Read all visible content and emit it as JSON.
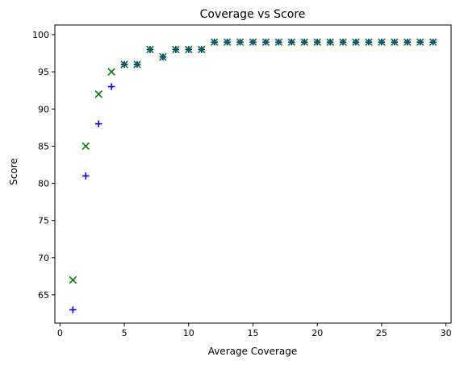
{
  "chart_data": {
    "type": "scatter",
    "title": "Coverage vs Score",
    "xlabel": "Average Coverage",
    "ylabel": "Score",
    "xlim": [
      -0.4,
      30.4
    ],
    "ylim": [
      61.2,
      101.3
    ],
    "xticks": [
      0,
      5,
      10,
      15,
      20,
      25,
      30
    ],
    "yticks": [
      65,
      70,
      75,
      80,
      85,
      90,
      95,
      100
    ],
    "grid": false,
    "legend": "none",
    "series": [
      {
        "marker": "plus",
        "color": "#0000ff",
        "x": [
          1,
          2,
          3,
          4,
          5,
          6,
          7,
          8,
          9,
          10,
          11,
          12,
          13,
          14,
          15,
          16,
          17,
          18,
          19,
          20,
          21,
          22,
          23,
          24,
          25,
          26,
          27,
          28,
          29
        ],
        "y": [
          63,
          81,
          88,
          93,
          96,
          96,
          98,
          97,
          98,
          98,
          98,
          99,
          99,
          99,
          99,
          99,
          99,
          99,
          99,
          99,
          99,
          99,
          99,
          99,
          99,
          99,
          99,
          99,
          99
        ]
      },
      {
        "marker": "x",
        "color": "#008000",
        "x": [
          1,
          2,
          3,
          4,
          5,
          6,
          7,
          8,
          9,
          10,
          11,
          12,
          13,
          14,
          15,
          16,
          17,
          18,
          19,
          20,
          21,
          22,
          23,
          24,
          25,
          26,
          27,
          28,
          29
        ],
        "y": [
          67,
          85,
          92,
          95,
          96,
          96,
          98,
          97,
          98,
          98,
          98,
          99,
          99,
          99,
          99,
          99,
          99,
          99,
          99,
          99,
          99,
          99,
          99,
          99,
          99,
          99,
          99,
          99,
          99
        ]
      }
    ]
  }
}
